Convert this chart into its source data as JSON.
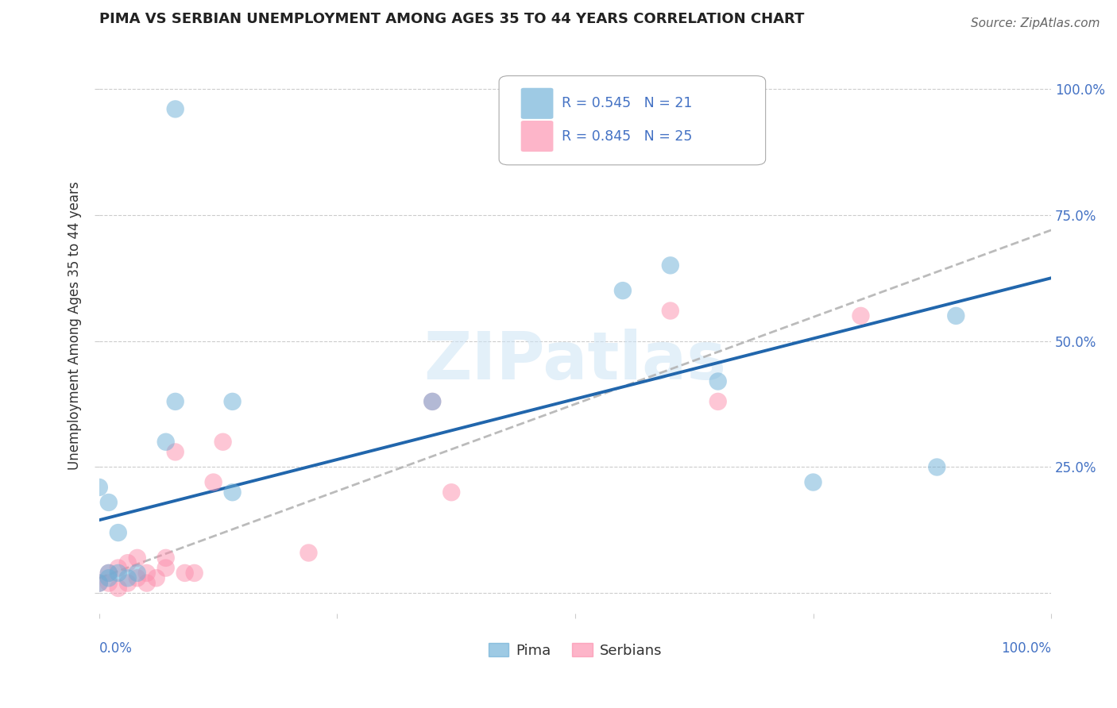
{
  "title": "PIMA VS SERBIAN UNEMPLOYMENT AMONG AGES 35 TO 44 YEARS CORRELATION CHART",
  "source": "Source: ZipAtlas.com",
  "ylabel": "Unemployment Among Ages 35 to 44 years",
  "ytick_labels": [
    "",
    "25.0%",
    "50.0%",
    "75.0%",
    "100.0%"
  ],
  "ytick_positions": [
    0.0,
    0.25,
    0.5,
    0.75,
    1.0
  ],
  "xtick_labels_bottom": [
    "0.0%",
    "100.0%"
  ],
  "xlim": [
    0.0,
    1.0
  ],
  "ylim": [
    -0.04,
    1.1
  ],
  "legend_blue_r": "R = 0.545",
  "legend_blue_n": "N = 21",
  "legend_pink_r": "R = 0.845",
  "legend_pink_n": "N = 25",
  "pima_color": "#6baed6",
  "serbian_color": "#fc8eac",
  "pima_line_color": "#2166ac",
  "serbian_line_color": "#b0b0b0",
  "watermark_text": "ZIPatlas",
  "background_color": "#ffffff",
  "grid_color": "#cccccc",
  "title_color": "#222222",
  "tick_label_color": "#4472c4",
  "pima_points_x": [
    0.08,
    0.0,
    0.01,
    0.01,
    0.02,
    0.03,
    0.04,
    0.0,
    0.01,
    0.02,
    0.07,
    0.08,
    0.14,
    0.14,
    0.35,
    0.55,
    0.6,
    0.65,
    0.75,
    0.88,
    0.9
  ],
  "pima_points_y": [
    0.96,
    0.02,
    0.03,
    0.04,
    0.04,
    0.03,
    0.04,
    0.21,
    0.18,
    0.12,
    0.3,
    0.38,
    0.2,
    0.38,
    0.38,
    0.6,
    0.65,
    0.42,
    0.22,
    0.25,
    0.55
  ],
  "serbian_points_x": [
    0.0,
    0.01,
    0.01,
    0.02,
    0.02,
    0.03,
    0.03,
    0.04,
    0.04,
    0.05,
    0.05,
    0.06,
    0.07,
    0.07,
    0.08,
    0.09,
    0.1,
    0.12,
    0.13,
    0.22,
    0.35,
    0.37,
    0.6,
    0.65,
    0.8
  ],
  "serbian_points_y": [
    0.02,
    0.02,
    0.04,
    0.01,
    0.05,
    0.02,
    0.06,
    0.03,
    0.07,
    0.02,
    0.04,
    0.03,
    0.05,
    0.07,
    0.28,
    0.04,
    0.04,
    0.22,
    0.3,
    0.08,
    0.38,
    0.2,
    0.56,
    0.38,
    0.55
  ],
  "pima_line_x": [
    0.0,
    1.0
  ],
  "pima_line_y": [
    0.145,
    0.625
  ],
  "serbian_line_x": [
    0.0,
    1.0
  ],
  "serbian_line_y": [
    0.03,
    0.72
  ]
}
